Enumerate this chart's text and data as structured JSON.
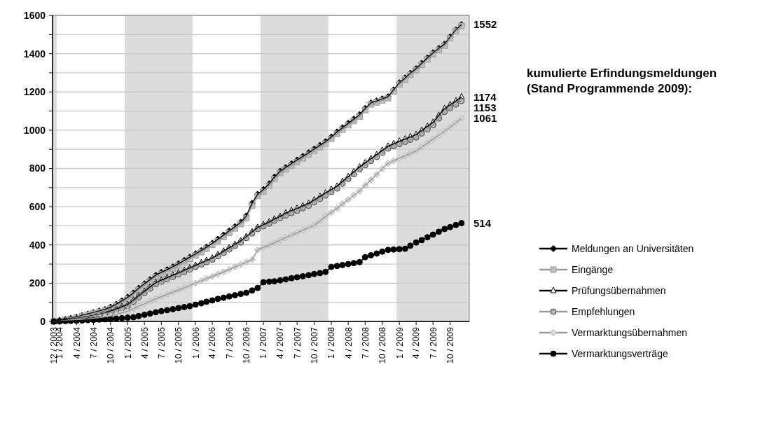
{
  "chart_data": {
    "type": "line",
    "title": "kumulierte Erfindungsmeldungen (Stand Programmende 2009):",
    "x": [
      "2003-12",
      "2004-01",
      "2004-02",
      "2004-03",
      "2004-04",
      "2004-05",
      "2004-06",
      "2004-07",
      "2004-08",
      "2004-09",
      "2004-10",
      "2004-11",
      "2004-12",
      "2005-01",
      "2005-02",
      "2005-03",
      "2005-04",
      "2005-05",
      "2005-06",
      "2005-07",
      "2005-08",
      "2005-09",
      "2005-10",
      "2005-11",
      "2005-12",
      "2006-01",
      "2006-02",
      "2006-03",
      "2006-04",
      "2006-05",
      "2006-06",
      "2006-07",
      "2006-08",
      "2006-09",
      "2006-10",
      "2006-11",
      "2006-12",
      "2007-01",
      "2007-02",
      "2007-03",
      "2007-04",
      "2007-05",
      "2007-06",
      "2007-07",
      "2007-08",
      "2007-09",
      "2007-10",
      "2007-11",
      "2007-12",
      "2008-01",
      "2008-02",
      "2008-03",
      "2008-04",
      "2008-05",
      "2008-06",
      "2008-07",
      "2008-08",
      "2008-09",
      "2008-10",
      "2008-11",
      "2008-12",
      "2009-01",
      "2009-02",
      "2009-03",
      "2009-04",
      "2009-05",
      "2009-06",
      "2009-07",
      "2009-08",
      "2009-09",
      "2009-10",
      "2009-11",
      "2009-12"
    ],
    "series": [
      {
        "name": "Meldungen an Universitäten",
        "color": "#000000",
        "marker": "diamond",
        "values": [
          0,
          5,
          10,
          16,
          23,
          31,
          39,
          47,
          55,
          63,
          75,
          90,
          108,
          127,
          149,
          174,
          197,
          219,
          242,
          257,
          271,
          286,
          302,
          319,
          336,
          354,
          371,
          389,
          409,
          430,
          452,
          474,
          496,
          519,
          552,
          618,
          665,
          690,
          720,
          755,
          786,
          805,
          825,
          844,
          863,
          882,
          902,
          921,
          940,
          965,
          991,
          1013,
          1036,
          1058,
          1081,
          1114,
          1143,
          1153,
          1164,
          1175,
          1211,
          1248,
          1273,
          1298,
          1322,
          1350,
          1378,
          1405,
          1428,
          1450,
          1488,
          1525,
          1552
        ],
        "value_labels": [
          null,
          null,
          null,
          null,
          null,
          null,
          null,
          null,
          null,
          null,
          null,
          null,
          null,
          null,
          null,
          null,
          null,
          null,
          null,
          null,
          null,
          null,
          null,
          null,
          null,
          null,
          null,
          null,
          null,
          null,
          null,
          null,
          null,
          null,
          null,
          null,
          null,
          null,
          null,
          null,
          null,
          null,
          null,
          null,
          null,
          null,
          null,
          null,
          null,
          null,
          null,
          null,
          null,
          null,
          null,
          null,
          null,
          null,
          null,
          null,
          null,
          null,
          null,
          null,
          null,
          null,
          null,
          null,
          null,
          null,
          null,
          null,
          "1552"
        ]
      },
      {
        "name": "Eingänge",
        "color": "#c0c0c0",
        "marker": "square",
        "values": [
          0,
          3,
          8,
          14,
          20,
          28,
          35,
          43,
          50,
          58,
          67,
          82,
          100,
          118,
          140,
          165,
          188,
          210,
          233,
          248,
          262,
          277,
          293,
          310,
          327,
          345,
          362,
          380,
          400,
          420,
          442,
          464,
          486,
          509,
          540,
          605,
          656,
          680,
          710,
          745,
          776,
          795,
          815,
          834,
          853,
          872,
          892,
          911,
          930,
          955,
          981,
          1003,
          1026,
          1048,
          1071,
          1105,
          1135,
          1145,
          1156,
          1167,
          1203,
          1240,
          1265,
          1290,
          1314,
          1342,
          1370,
          1397,
          1420,
          1442,
          1480,
          1519,
          1545
        ]
      },
      {
        "name": "Prüfungsübernahmen",
        "color": "#ffffff",
        "marker": "triangle",
        "values": [
          0,
          5,
          8,
          12,
          16,
          21,
          26,
          32,
          38,
          44,
          55,
          66,
          77,
          88,
          111,
          134,
          157,
          180,
          203,
          216,
          229,
          241,
          254,
          267,
          280,
          293,
          306,
          318,
          331,
          349,
          367,
          385,
          403,
          421,
          444,
          468,
          491,
          506,
          520,
          535,
          549,
          566,
          579,
          591,
          604,
          617,
          635,
          653,
          671,
          689,
          707,
          732,
          757,
          782,
          807,
          829,
          851,
          872,
          894,
          916,
          928,
          942,
          954,
          965,
          977,
          998,
          1020,
          1041,
          1077,
          1113,
          1133,
          1153,
          1174
        ],
        "value_labels": [
          null,
          null,
          null,
          null,
          null,
          null,
          null,
          null,
          null,
          null,
          null,
          null,
          null,
          null,
          null,
          null,
          null,
          null,
          null,
          null,
          null,
          null,
          null,
          null,
          null,
          null,
          null,
          null,
          null,
          null,
          null,
          null,
          null,
          null,
          null,
          null,
          null,
          null,
          null,
          null,
          null,
          null,
          null,
          null,
          null,
          null,
          null,
          null,
          null,
          null,
          null,
          null,
          null,
          null,
          null,
          null,
          null,
          null,
          null,
          null,
          null,
          null,
          null,
          null,
          null,
          null,
          null,
          null,
          null,
          null,
          null,
          null,
          "1174"
        ]
      },
      {
        "name": "Empfehlungen",
        "color": "#b4b4b4",
        "marker": "circle",
        "values": [
          0,
          2,
          5,
          9,
          13,
          18,
          23,
          29,
          35,
          41,
          47,
          58,
          69,
          80,
          103,
          126,
          149,
          172,
          195,
          208,
          221,
          233,
          246,
          259,
          272,
          285,
          298,
          310,
          323,
          341,
          359,
          377,
          395,
          413,
          436,
          460,
          483,
          498,
          512,
          527,
          541,
          554,
          567,
          579,
          592,
          605,
          623,
          641,
          659,
          677,
          695,
          720,
          745,
          770,
          795,
          817,
          839,
          860,
          882,
          904,
          916,
          927,
          939,
          950,
          962,
          983,
          1005,
          1026,
          1061,
          1096,
          1115,
          1134,
          1153
        ],
        "value_labels": [
          null,
          null,
          null,
          null,
          null,
          null,
          null,
          null,
          null,
          null,
          null,
          null,
          null,
          null,
          null,
          null,
          null,
          null,
          null,
          null,
          null,
          null,
          null,
          null,
          null,
          null,
          null,
          null,
          null,
          null,
          null,
          null,
          null,
          null,
          null,
          null,
          null,
          null,
          null,
          null,
          null,
          null,
          null,
          null,
          null,
          null,
          null,
          null,
          null,
          null,
          null,
          null,
          null,
          null,
          null,
          null,
          null,
          null,
          null,
          null,
          null,
          null,
          null,
          null,
          null,
          null,
          null,
          null,
          null,
          null,
          null,
          null,
          "1153"
        ]
      },
      {
        "name": "Vermarktungsübernahmen",
        "color": "#d9d9d9",
        "marker": "diamond",
        "values": [
          0,
          1,
          3,
          5,
          8,
          11,
          14,
          17,
          20,
          24,
          28,
          37,
          45,
          54,
          67,
          80,
          92,
          105,
          118,
          130,
          141,
          153,
          165,
          176,
          188,
          200,
          212,
          224,
          235,
          247,
          259,
          272,
          285,
          297,
          310,
          323,
          374,
          387,
          399,
          412,
          425,
          438,
          451,
          464,
          477,
          490,
          503,
          525,
          548,
          570,
          592,
          615,
          637,
          660,
          682,
          711,
          740,
          769,
          798,
          827,
          840,
          853,
          865,
          878,
          891,
          912,
          932,
          953,
          973,
          994,
          1016,
          1039,
          1061
        ],
        "value_labels": [
          null,
          null,
          null,
          null,
          null,
          null,
          null,
          null,
          null,
          null,
          null,
          null,
          null,
          null,
          null,
          null,
          null,
          null,
          null,
          null,
          null,
          null,
          null,
          null,
          null,
          null,
          null,
          null,
          null,
          null,
          null,
          null,
          null,
          null,
          null,
          null,
          null,
          null,
          null,
          null,
          null,
          null,
          null,
          null,
          null,
          null,
          null,
          null,
          null,
          null,
          null,
          null,
          null,
          null,
          null,
          null,
          null,
          null,
          null,
          null,
          null,
          null,
          null,
          null,
          null,
          null,
          null,
          null,
          null,
          null,
          null,
          null,
          "1061"
        ]
      },
      {
        "name": "Vermarktungsverträge",
        "color": "#000000",
        "marker": "circle",
        "values": [
          0,
          1,
          2,
          3,
          4,
          5,
          7,
          8,
          10,
          11,
          13,
          15,
          17,
          20,
          22,
          28,
          35,
          41,
          48,
          54,
          59,
          64,
          70,
          75,
          80,
          88,
          95,
          103,
          110,
          118,
          124,
          131,
          137,
          144,
          150,
          162,
          175,
          205,
          208,
          210,
          215,
          220,
          226,
          231,
          236,
          242,
          248,
          253,
          259,
          285,
          290,
          295,
          300,
          305,
          310,
          336,
          346,
          355,
          365,
          374,
          376,
          378,
          380,
          396,
          413,
          425,
          440,
          454,
          469,
          483,
          493,
          504,
          514
        ],
        "value_labels": [
          null,
          null,
          null,
          null,
          null,
          null,
          null,
          null,
          null,
          null,
          null,
          null,
          null,
          null,
          null,
          null,
          null,
          null,
          null,
          null,
          null,
          null,
          null,
          null,
          null,
          null,
          null,
          null,
          null,
          null,
          null,
          null,
          null,
          null,
          null,
          null,
          null,
          null,
          null,
          null,
          null,
          null,
          null,
          null,
          null,
          null,
          null,
          null,
          null,
          null,
          null,
          null,
          null,
          null,
          null,
          null,
          null,
          null,
          null,
          null,
          null,
          null,
          null,
          null,
          null,
          null,
          null,
          null,
          null,
          null,
          null,
          null,
          "514"
        ]
      }
    ],
    "xlim": [
      "2003-11-24",
      "2010-01-12"
    ],
    "xticks": [
      {
        "value": "2003-12",
        "label": "12 / 2003"
      },
      {
        "value": "2004-01",
        "label": "1 / 2004"
      },
      {
        "value": "2004-04",
        "label": "4 / 2004"
      },
      {
        "value": "2004-07",
        "label": "7 / 2004"
      },
      {
        "value": "2004-10",
        "label": "10 / 2004"
      },
      {
        "value": "2005-01",
        "label": "1 / 2005"
      },
      {
        "value": "2005-04",
        "label": "4 / 2005"
      },
      {
        "value": "2005-07",
        "label": "7 / 2005"
      },
      {
        "value": "2005-10",
        "label": "10 / 2005"
      },
      {
        "value": "2006-01",
        "label": "1 / 2006"
      },
      {
        "value": "2006-04",
        "label": "4 / 2006"
      },
      {
        "value": "2006-07",
        "label": "7 / 2006"
      },
      {
        "value": "2006-10",
        "label": "10 / 2006"
      },
      {
        "value": "2007-01",
        "label": "1 / 2007"
      },
      {
        "value": "2007-04",
        "label": "4 / 2007"
      },
      {
        "value": "2007-07",
        "label": "7 / 2007"
      },
      {
        "value": "2007-10",
        "label": "10 / 2007"
      },
      {
        "value": "2008-01",
        "label": "1 / 2008"
      },
      {
        "value": "2008-04",
        "label": "4 / 2008"
      },
      {
        "value": "2008-07",
        "label": "7 / 2008"
      },
      {
        "value": "2008-10",
        "label": "10 / 2008"
      },
      {
        "value": "2009-01",
        "label": "1 / 2009"
      },
      {
        "value": "2009-04",
        "label": "4 / 2009"
      },
      {
        "value": "2009-07",
        "label": "7 / 2009"
      },
      {
        "value": "2009-10",
        "label": "10 / 2009"
      }
    ],
    "ylim": [
      0,
      1600
    ],
    "yticks": [
      0,
      {
        "value": 100,
        "label": null
      },
      200,
      {
        "value": 300,
        "label": null
      },
      400,
      {
        "value": 500,
        "label": null
      },
      600,
      {
        "value": 700,
        "label": null
      },
      800,
      {
        "value": 900,
        "label": null
      },
      1000,
      {
        "value": 1100,
        "label": null
      },
      1200,
      {
        "value": 1300,
        "label": null
      },
      1400,
      {
        "value": 1500,
        "label": null
      },
      1600
    ],
    "bands": [
      {
        "axis": "x",
        "from": "2003-11-24",
        "to": "2003-12-16",
        "color": "#dcdcdc"
      },
      {
        "axis": "x",
        "from": "2004-12-16",
        "to": "2005-12-16",
        "color": "#dcdcdc"
      },
      {
        "axis": "x",
        "from": "2006-12-16",
        "to": "2007-12-16",
        "color": "#dcdcdc"
      },
      {
        "axis": "x",
        "from": "2008-12-16",
        "to": "2010-01-12",
        "color": "#dcdcdc"
      }
    ],
    "grid": "y",
    "legend": "right"
  }
}
